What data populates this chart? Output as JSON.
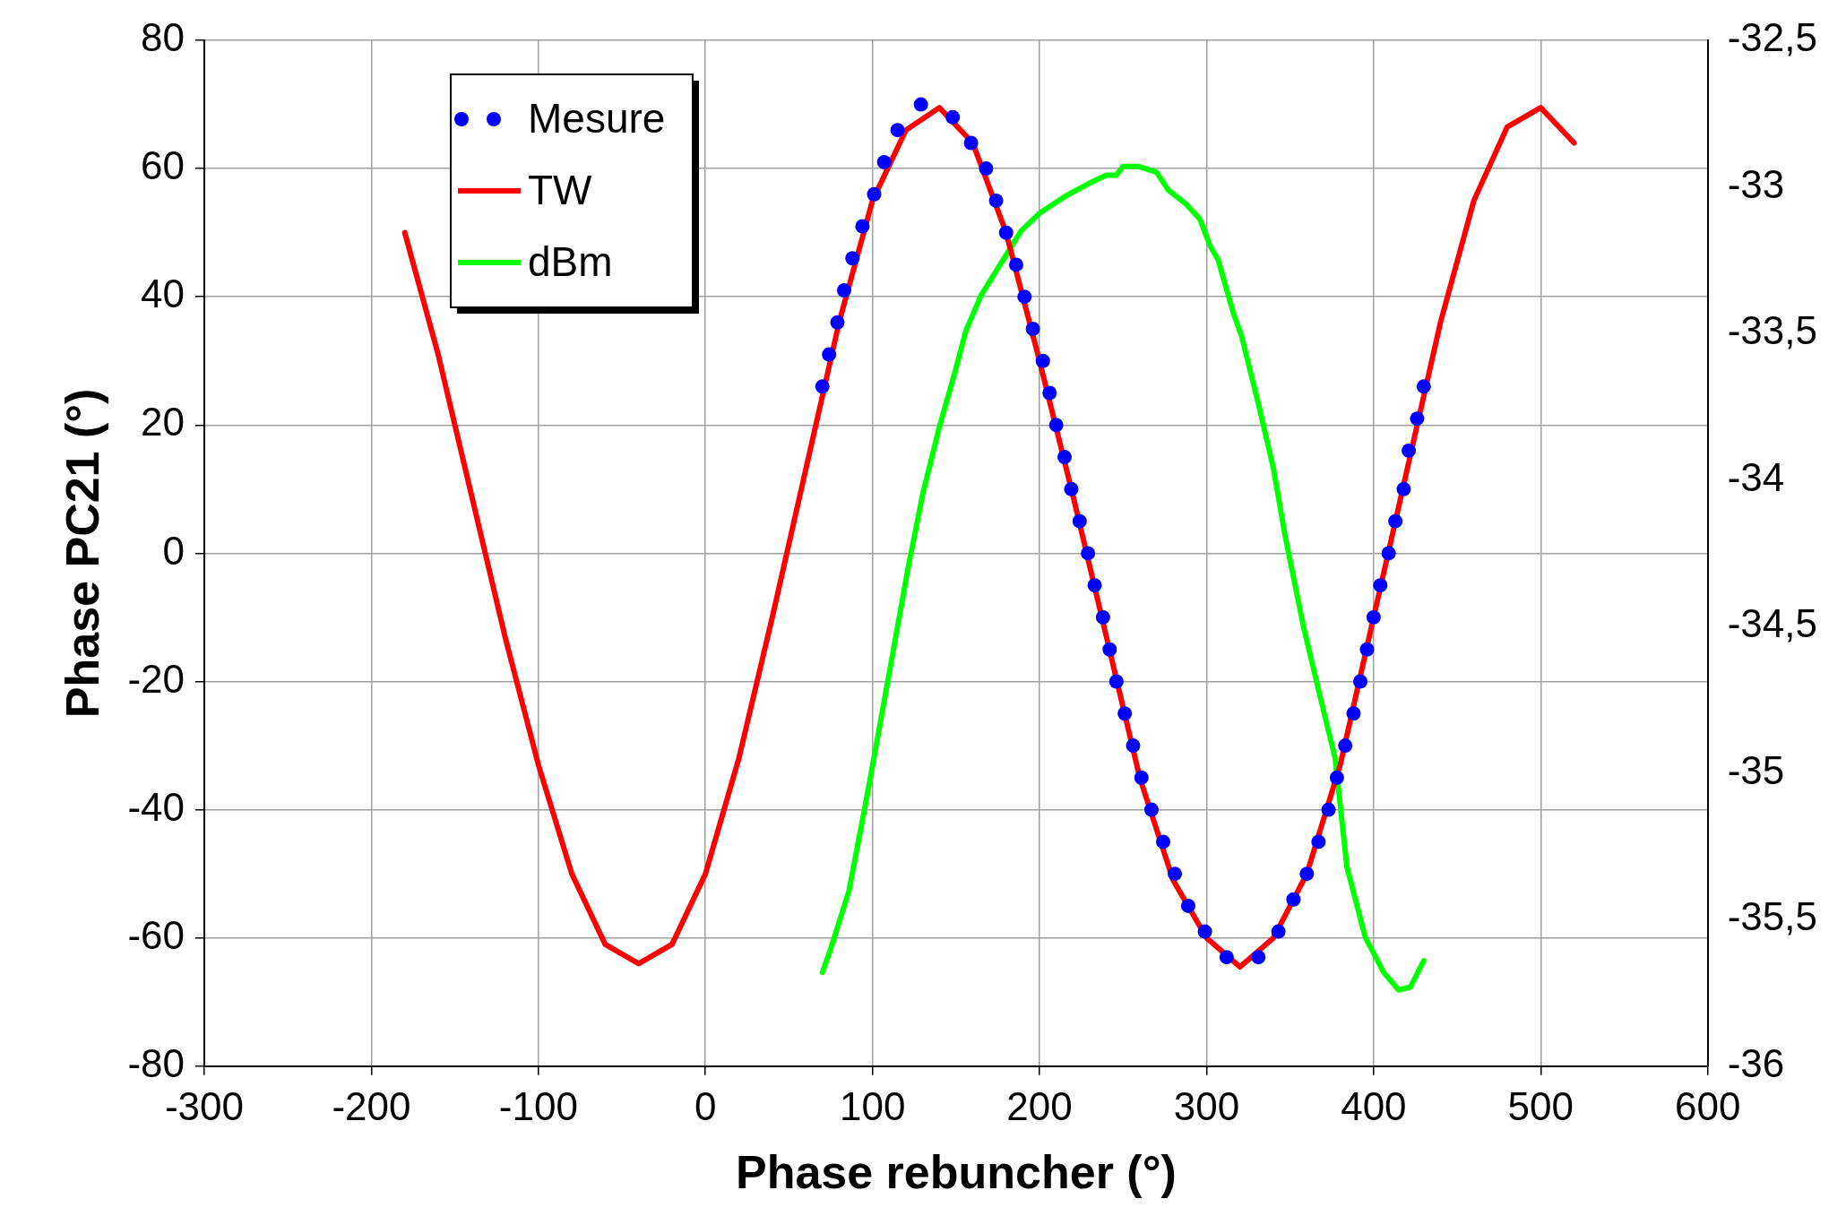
{
  "chart_data": {
    "type": "line",
    "xlabel": "Phase rebuncher (°)",
    "ylabel": "Phase PC21 (°)",
    "xlim": [
      -300,
      600
    ],
    "xticks": [
      -300,
      -200,
      -100,
      0,
      100,
      200,
      300,
      400,
      500,
      600
    ],
    "ylim": [
      -80,
      80
    ],
    "yticks": [
      -80,
      -60,
      -40,
      -20,
      0,
      20,
      40,
      60,
      80
    ],
    "y2lim": [
      -36,
      -32.5
    ],
    "y2ticks": [
      -36,
      {
        "value": -35.5,
        "label": "-35,5"
      },
      -35,
      {
        "value": -34.5,
        "label": "-34,5"
      },
      -34,
      {
        "value": -33.5,
        "label": "-33,5"
      },
      -33,
      {
        "value": -32.5,
        "label": "-32,5"
      }
    ],
    "grid": true,
    "legend": "top left",
    "series": [
      {
        "name": "Mesure",
        "type": "scatter",
        "marker": "circle",
        "color": "#0000ff",
        "x": [
          70,
          74,
          79,
          83,
          88,
          94,
          101,
          107,
          115,
          129,
          148,
          159,
          168,
          174,
          180,
          186,
          191,
          196,
          202,
          206,
          210,
          215,
          219,
          224,
          229,
          233,
          238,
          242,
          246,
          251,
          256,
          261,
          267,
          274,
          281,
          289,
          299,
          312,
          331,
          343,
          352,
          360,
          367,
          373,
          378,
          383,
          388,
          392,
          396,
          400,
          404,
          409,
          413,
          418,
          421,
          426,
          430
        ],
        "values": [
          26,
          31,
          36,
          41,
          46,
          51,
          56,
          61,
          66,
          70,
          68,
          64,
          60,
          55,
          50,
          45,
          40,
          35,
          30,
          25,
          20,
          15,
          10,
          5,
          0,
          -5,
          -10,
          -15,
          -20,
          -25,
          -30,
          -35,
          -40,
          -45,
          -50,
          -55,
          -59,
          -63,
          -63,
          -59,
          -54,
          -50,
          -45,
          -40,
          -35,
          -30,
          -25,
          -20,
          -15,
          -10,
          -5,
          0,
          5,
          10,
          16,
          21,
          26
        ]
      },
      {
        "name": "TW",
        "type": "line",
        "marker": "none",
        "color": "#ff0000",
        "x": [
          -180,
          -160,
          -140,
          -120,
          -100,
          -80,
          -60,
          -40,
          -20,
          0,
          20,
          40,
          60,
          80,
          100,
          120,
          140,
          160,
          180,
          200,
          220,
          240,
          260,
          280,
          300,
          320,
          340,
          360,
          380,
          400,
          420,
          440,
          460,
          480,
          500,
          520
        ],
        "values": [
          50,
          31,
          9,
          -13,
          -33,
          -50,
          -61,
          -64,
          -61,
          -50,
          -32,
          -10,
          13,
          36,
          55,
          66,
          69.5,
          64,
          50,
          30,
          9,
          -13,
          -35,
          -51,
          -60,
          -64.5,
          -60,
          -50,
          -33,
          -10,
          13,
          36,
          55,
          66.5,
          69.5,
          64
        ]
      },
      {
        "name": "dBm",
        "type": "line",
        "marker": "none",
        "axis": "y2",
        "color": "#00ff00",
        "x": [
          70,
          75,
          86,
          97,
          110,
          121,
          130,
          140,
          149,
          156,
          165,
          177,
          189,
          200,
          216,
          229,
          240,
          246,
          250,
          259,
          270,
          277,
          288,
          296,
          302,
          307,
          316,
          321,
          331,
          340,
          347,
          358,
          368,
          377,
          384,
          395,
          406,
          415,
          422,
          430
        ],
        "values": [
          -35.68,
          -35.6,
          -35.4,
          -35.07,
          -34.66,
          -34.31,
          -34.05,
          -33.82,
          -33.64,
          -33.49,
          -33.37,
          -33.26,
          -33.15,
          -33.09,
          -33.03,
          -32.99,
          -32.96,
          -32.96,
          -32.93,
          -32.93,
          -32.95,
          -33.01,
          -33.06,
          -33.11,
          -33.2,
          -33.25,
          -33.43,
          -33.51,
          -33.74,
          -33.96,
          -34.19,
          -34.5,
          -34.74,
          -34.95,
          -35.32,
          -35.56,
          -35.68,
          -35.74,
          -35.73,
          -35.64
        ]
      }
    ]
  }
}
